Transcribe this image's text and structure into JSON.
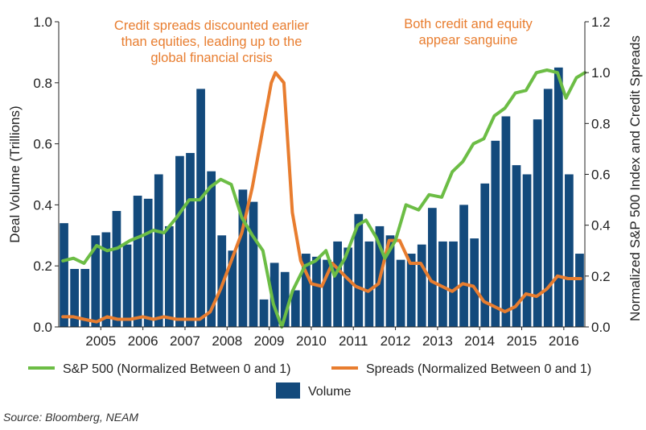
{
  "chart_data": {
    "type": "bar",
    "colors": {
      "volume": "#134a7c",
      "sp500": "#6cbd45",
      "spreads": "#e87d2f"
    },
    "x": [
      2004.125,
      2004.375,
      2004.625,
      2004.875,
      2005.125,
      2005.375,
      2005.625,
      2005.875,
      2006.125,
      2006.375,
      2006.625,
      2006.875,
      2007.125,
      2007.375,
      2007.625,
      2007.875,
      2008.125,
      2008.375,
      2008.625,
      2008.875,
      2009.125,
      2009.375,
      2009.625,
      2009.875,
      2010.125,
      2010.375,
      2010.625,
      2010.875,
      2011.125,
      2011.375,
      2011.625,
      2011.875,
      2012.125,
      2012.375,
      2012.625,
      2012.875,
      2013.125,
      2013.375,
      2013.625,
      2013.875,
      2014.125,
      2014.375,
      2014.625,
      2014.875,
      2015.125,
      2015.375,
      2015.625,
      2015.875,
      2016.125,
      2016.375
    ],
    "series": [
      {
        "name": "Volume",
        "axis": "left",
        "type": "bar",
        "values": [
          0.34,
          0.19,
          0.19,
          0.3,
          0.31,
          0.38,
          0.27,
          0.43,
          0.42,
          0.5,
          0.33,
          0.56,
          0.57,
          0.78,
          0.51,
          0.3,
          0.25,
          0.45,
          0.41,
          0.09,
          0.21,
          0.18,
          0.12,
          0.24,
          0.23,
          0.22,
          0.28,
          0.26,
          0.37,
          0.28,
          0.33,
          0.3,
          0.22,
          0.24,
          0.27,
          0.39,
          0.28,
          0.28,
          0.4,
          0.29,
          0.47,
          0.61,
          0.69,
          0.53,
          0.5,
          0.68,
          0.78,
          0.85,
          0.5,
          0.24
        ]
      },
      {
        "name": "S&P 500 (Normalized Between 0 and 1)",
        "axis": "right",
        "type": "line",
        "points": [
          [
            2004.1,
            0.26
          ],
          [
            2004.35,
            0.27
          ],
          [
            2004.6,
            0.25
          ],
          [
            2004.9,
            0.32
          ],
          [
            2005.15,
            0.3
          ],
          [
            2005.4,
            0.31
          ],
          [
            2005.7,
            0.34
          ],
          [
            2006.0,
            0.36
          ],
          [
            2006.25,
            0.38
          ],
          [
            2006.5,
            0.37
          ],
          [
            2006.8,
            0.43
          ],
          [
            2007.1,
            0.5
          ],
          [
            2007.35,
            0.5
          ],
          [
            2007.6,
            0.55
          ],
          [
            2007.85,
            0.58
          ],
          [
            2008.1,
            0.56
          ],
          [
            2008.35,
            0.43
          ],
          [
            2008.6,
            0.36
          ],
          [
            2008.85,
            0.3
          ],
          [
            2009.1,
            0.09
          ],
          [
            2009.3,
            0.0
          ],
          [
            2009.55,
            0.14
          ],
          [
            2009.85,
            0.24
          ],
          [
            2010.1,
            0.26
          ],
          [
            2010.35,
            0.3
          ],
          [
            2010.55,
            0.2
          ],
          [
            2010.8,
            0.27
          ],
          [
            2011.1,
            0.4
          ],
          [
            2011.3,
            0.42
          ],
          [
            2011.55,
            0.35
          ],
          [
            2011.75,
            0.27
          ],
          [
            2012.0,
            0.34
          ],
          [
            2012.25,
            0.48
          ],
          [
            2012.55,
            0.46
          ],
          [
            2012.8,
            0.52
          ],
          [
            2013.1,
            0.51
          ],
          [
            2013.35,
            0.61
          ],
          [
            2013.6,
            0.65
          ],
          [
            2013.85,
            0.72
          ],
          [
            2014.1,
            0.74
          ],
          [
            2014.35,
            0.83
          ],
          [
            2014.6,
            0.86
          ],
          [
            2014.85,
            0.92
          ],
          [
            2015.1,
            0.93
          ],
          [
            2015.35,
            1.0
          ],
          [
            2015.6,
            1.01
          ],
          [
            2015.85,
            1.0
          ],
          [
            2016.05,
            0.9
          ],
          [
            2016.3,
            0.98
          ],
          [
            2016.5,
            1.0
          ]
        ]
      },
      {
        "name": "Spreads (Normalized Between 0 and 1)",
        "axis": "right",
        "type": "line",
        "points": [
          [
            2004.1,
            0.04
          ],
          [
            2004.35,
            0.04
          ],
          [
            2004.6,
            0.03
          ],
          [
            2004.9,
            0.02
          ],
          [
            2005.15,
            0.04
          ],
          [
            2005.4,
            0.03
          ],
          [
            2005.7,
            0.03
          ],
          [
            2006.0,
            0.04
          ],
          [
            2006.25,
            0.03
          ],
          [
            2006.5,
            0.04
          ],
          [
            2006.8,
            0.03
          ],
          [
            2007.1,
            0.03
          ],
          [
            2007.35,
            0.03
          ],
          [
            2007.6,
            0.06
          ],
          [
            2007.85,
            0.15
          ],
          [
            2008.1,
            0.26
          ],
          [
            2008.35,
            0.37
          ],
          [
            2008.6,
            0.55
          ],
          [
            2008.85,
            0.78
          ],
          [
            2009.05,
            0.96
          ],
          [
            2009.15,
            1.0
          ],
          [
            2009.35,
            0.96
          ],
          [
            2009.55,
            0.45
          ],
          [
            2009.75,
            0.26
          ],
          [
            2010.0,
            0.17
          ],
          [
            2010.25,
            0.16
          ],
          [
            2010.5,
            0.25
          ],
          [
            2010.8,
            0.2
          ],
          [
            2011.05,
            0.16
          ],
          [
            2011.35,
            0.14
          ],
          [
            2011.6,
            0.17
          ],
          [
            2011.85,
            0.34
          ],
          [
            2012.1,
            0.34
          ],
          [
            2012.35,
            0.25
          ],
          [
            2012.6,
            0.25
          ],
          [
            2012.85,
            0.18
          ],
          [
            2013.1,
            0.16
          ],
          [
            2013.35,
            0.14
          ],
          [
            2013.6,
            0.17
          ],
          [
            2013.85,
            0.16
          ],
          [
            2014.1,
            0.1
          ],
          [
            2014.35,
            0.08
          ],
          [
            2014.6,
            0.06
          ],
          [
            2014.85,
            0.08
          ],
          [
            2015.1,
            0.13
          ],
          [
            2015.35,
            0.12
          ],
          [
            2015.6,
            0.15
          ],
          [
            2015.85,
            0.2
          ],
          [
            2016.1,
            0.19
          ],
          [
            2016.4,
            0.19
          ]
        ]
      }
    ],
    "xlim": [
      2004.0,
      2016.5
    ],
    "x_ticks": [
      2005,
      2006,
      2007,
      2008,
      2009,
      2010,
      2011,
      2012,
      2013,
      2014,
      2015,
      2016
    ],
    "x_tick_labels": [
      "2005",
      "2006",
      "2007",
      "2008",
      "2009",
      "2010",
      "2011",
      "2012",
      "2013",
      "2014",
      "2015",
      "2016"
    ],
    "ylim_left": [
      0,
      1.0
    ],
    "y_left_ticks": [
      0.0,
      0.2,
      0.4,
      0.6,
      0.8,
      1.0
    ],
    "y_left_tick_labels": [
      "0.0",
      "0.2",
      "0.4",
      "0.6",
      "0.8",
      "1.0"
    ],
    "ylim_right": [
      0,
      1.2
    ],
    "y_right_ticks": [
      0.0,
      0.2,
      0.4,
      0.6,
      0.8,
      1.0,
      1.2
    ],
    "y_right_tick_labels": [
      "0.0",
      "0.2",
      "0.4",
      "0.6",
      "0.8",
      "1.0",
      "1.2"
    ],
    "ylabel_left": "Deal Volume (Trillions)",
    "ylabel_right": "Normalized S&P 500 Index and Credit Spreads",
    "annotations": [
      {
        "lines": [
          "Credit spreads discounted earlier",
          "than equities, leading up to the",
          "global financial crisis"
        ]
      },
      {
        "lines": [
          "Both credit and equity",
          "appear sanguine"
        ]
      }
    ],
    "legend_placement": "bottom",
    "grid": false
  },
  "legend": {
    "sp500_label": "S&P 500 (Normalized Between 0 and 1)",
    "spreads_label": "Spreads (Normalized Between 0 and 1)",
    "volume_label": "Volume"
  },
  "source": "Source: Bloomberg, NEAM"
}
